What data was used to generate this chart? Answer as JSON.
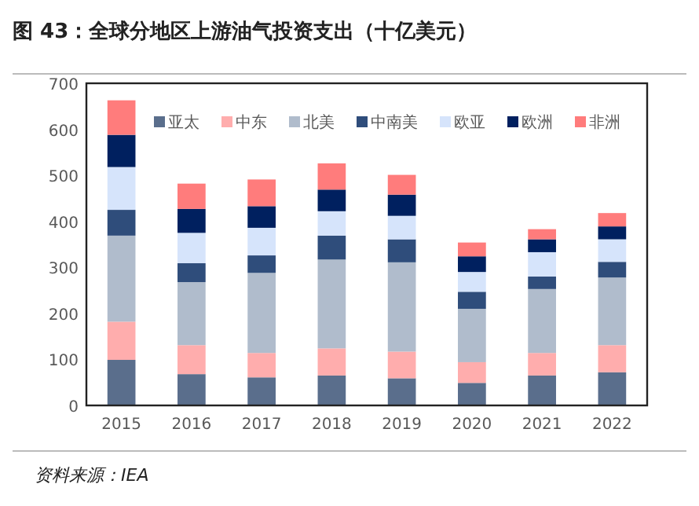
{
  "chart_data": {
    "type": "bar",
    "stacked": true,
    "title": "图 43：全球分地区上游油气投资支出（十亿美元）",
    "categories": [
      "2015",
      "2016",
      "2017",
      "2018",
      "2019",
      "2020",
      "2021",
      "2022"
    ],
    "ylim": [
      0,
      700
    ],
    "yticks": [
      0,
      100,
      200,
      300,
      400,
      500,
      600,
      700
    ],
    "legend": "top",
    "series": [
      {
        "name": "亚太",
        "color": "#5a6e8c",
        "values": [
          99,
          68,
          61,
          65,
          59,
          49,
          65,
          72
        ]
      },
      {
        "name": "中东",
        "color": "#ffadad",
        "values": [
          83,
          63,
          53,
          59,
          58,
          45,
          49,
          59
        ]
      },
      {
        "name": "北美",
        "color": "#b0bccc",
        "values": [
          187,
          137,
          174,
          193,
          194,
          116,
          139,
          147
        ]
      },
      {
        "name": "中南美",
        "color": "#2f4d7b",
        "values": [
          56,
          41,
          38,
          52,
          50,
          37,
          27,
          34
        ]
      },
      {
        "name": "欧亚",
        "color": "#d6e4fb",
        "values": [
          93,
          66,
          60,
          53,
          51,
          43,
          53,
          49
        ]
      },
      {
        "name": "欧洲",
        "color": "#00205f",
        "values": [
          70,
          52,
          47,
          47,
          46,
          34,
          28,
          28
        ]
      },
      {
        "name": "非洲",
        "color": "#ff7c7c",
        "values": [
          75,
          55,
          58,
          57,
          43,
          30,
          22,
          29
        ]
      }
    ],
    "annotations": [
      "资料来源：IEA"
    ]
  }
}
